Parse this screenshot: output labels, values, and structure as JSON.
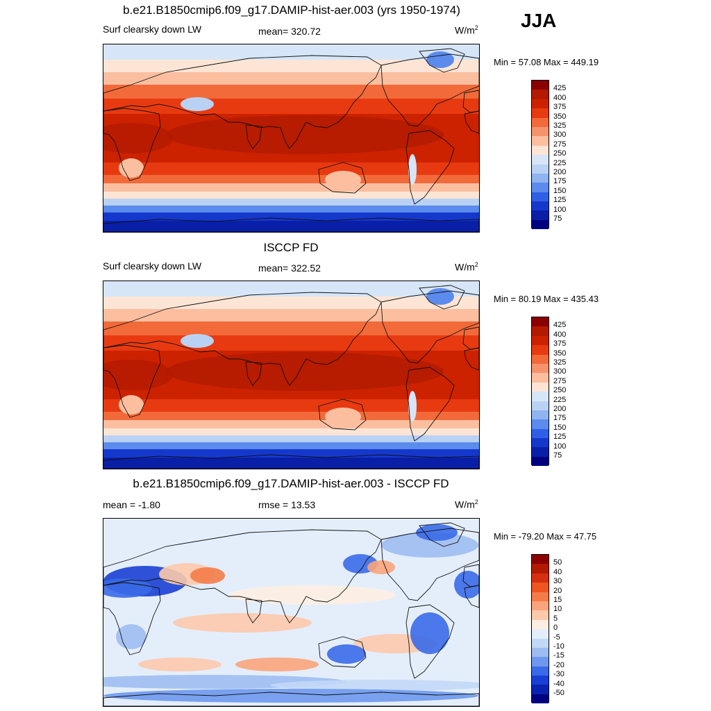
{
  "season": "JJA",
  "panels": [
    {
      "title": "b.e21.B1850cmip6.f09_g17.DAMIP-hist-aer.003 (yrs 1950-1974)",
      "left_label": "Surf clearsky down LW",
      "center_label": "mean= 320.72",
      "units_base": "W/m",
      "units_exp": "2",
      "minmax": "Min =  57.08 Max = 449.19",
      "colorbar_labels": [
        "425",
        "400",
        "375",
        "350",
        "325",
        "300",
        "275",
        "250",
        "225",
        "200",
        "175",
        "150",
        "125",
        "100",
        "75"
      ],
      "colorbar_colors": [
        "#8b0000",
        "#b31a00",
        "#cc2200",
        "#e83a10",
        "#f26a3a",
        "#f7936a",
        "#fbbfa0",
        "#fde5d5",
        "#d6e6f8",
        "#b9d2f4",
        "#8fb4ef",
        "#5b8bec",
        "#2f5fe6",
        "#1538cc",
        "#0a1fa8",
        "#000080"
      ],
      "map_scheme": "absolute"
    },
    {
      "title": "ISCCP FD",
      "left_label": "Surf clearsky down LW",
      "center_label": "mean= 322.52",
      "units_base": "W/m",
      "units_exp": "2",
      "minmax": "Min =  80.19 Max = 435.43",
      "colorbar_labels": [
        "425",
        "400",
        "375",
        "350",
        "325",
        "300",
        "275",
        "250",
        "225",
        "200",
        "175",
        "150",
        "125",
        "100",
        "75"
      ],
      "colorbar_colors": [
        "#8b0000",
        "#b31a00",
        "#cc2200",
        "#e83a10",
        "#f26a3a",
        "#f7936a",
        "#fbbfa0",
        "#fde5d5",
        "#d6e6f8",
        "#b9d2f4",
        "#8fb4ef",
        "#5b8bec",
        "#2f5fe6",
        "#1538cc",
        "#0a1fa8",
        "#000080"
      ],
      "map_scheme": "absolute"
    },
    {
      "title": "b.e21.B1850cmip6.f09_g17.DAMIP-hist-aer.003 - ISCCP FD",
      "left_label": "mean =  -1.80",
      "center_label": "rmse =  13.53",
      "units_base": "W/m",
      "units_exp": "2",
      "minmax": "Min = -79.20 Max =  47.75",
      "colorbar_labels": [
        "50",
        "40",
        "30",
        "20",
        "15",
        "10",
        "5",
        "0",
        "-5",
        "-10",
        "-15",
        "-20",
        "-30",
        "-40",
        "-50"
      ],
      "colorbar_colors": [
        "#8b0000",
        "#b31a00",
        "#d63010",
        "#ee5520",
        "#f47c48",
        "#f9a47a",
        "#fcc9ac",
        "#fdeee2",
        "#e4eefb",
        "#c2d8f6",
        "#9dbdf2",
        "#6d98ee",
        "#3a6ae8",
        "#1a3fd4",
        "#0a22b0",
        "#000080"
      ],
      "map_scheme": "difference"
    }
  ]
}
